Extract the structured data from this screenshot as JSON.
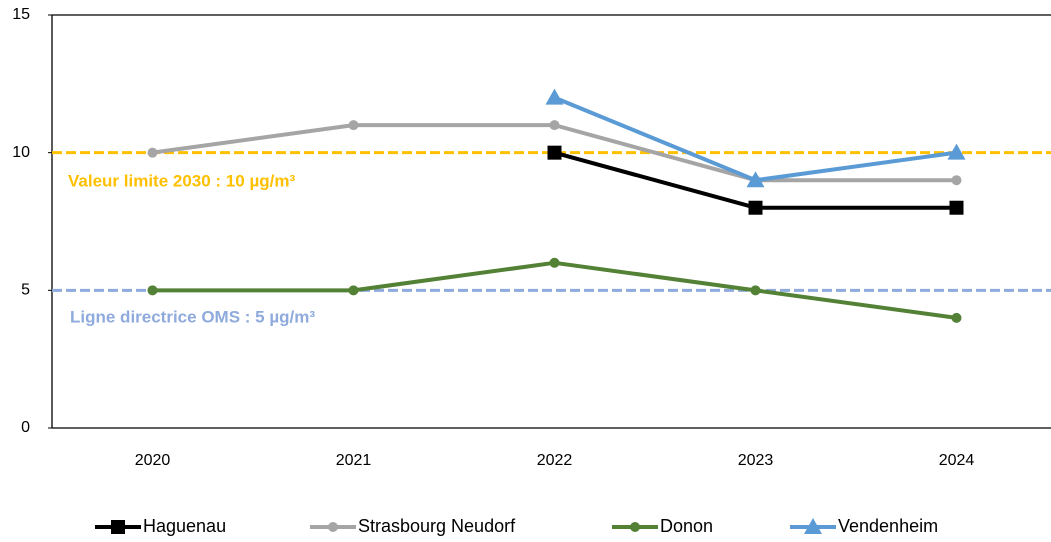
{
  "chart_data": {
    "type": "line",
    "categories": [
      "2020",
      "2021",
      "2022",
      "2023",
      "2024"
    ],
    "series": [
      {
        "name": "Haguenau",
        "color": "#000000",
        "marker": "square",
        "values": [
          null,
          null,
          10,
          8,
          8
        ]
      },
      {
        "name": "Strasbourg Neudorf",
        "color": "#a5a5a5",
        "marker": "circle",
        "values": [
          10,
          11,
          11,
          9,
          9
        ]
      },
      {
        "name": "Donon",
        "color": "#538135",
        "marker": "circle",
        "values": [
          5,
          5,
          6,
          5,
          4
        ]
      },
      {
        "name": "Vendenheim",
        "color": "#5b9bd5",
        "marker": "triangle",
        "values": [
          null,
          null,
          12,
          9,
          10
        ]
      }
    ],
    "reference_lines": [
      {
        "label": "Valeur limite 2030 : 10 µg/m³",
        "value": 10,
        "color": "#ffc000"
      },
      {
        "label": "Ligne directrice OMS : 5 µg/m³",
        "value": 5,
        "color": "#8faadc"
      }
    ],
    "ylim": [
      0,
      15
    ],
    "yticks": [
      0,
      5,
      10,
      15
    ],
    "grid": false,
    "legend": "bottom"
  }
}
